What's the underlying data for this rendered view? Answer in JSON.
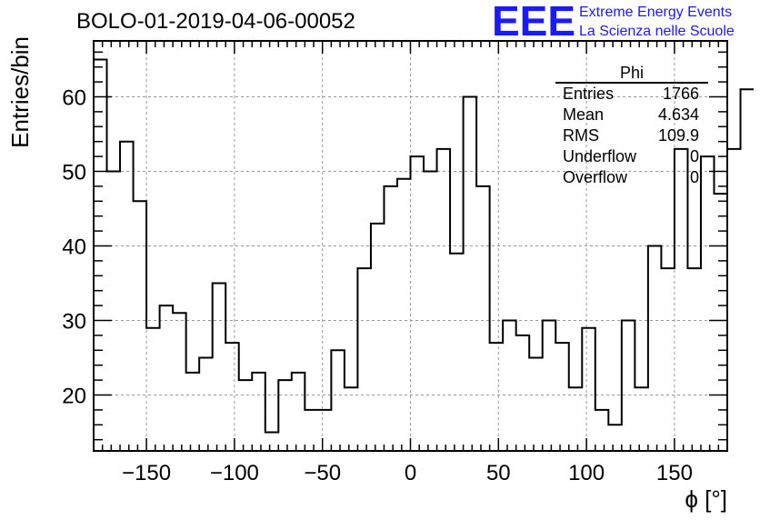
{
  "header": {
    "title": "BOLO-01-2019-04-06-00052"
  },
  "logo": {
    "mark": "EEE",
    "line1": "Extreme Energy Events",
    "line2": "La Scienza nelle Scuole",
    "color": "#1a1aff"
  },
  "stats": {
    "title": "Phi",
    "rows": [
      {
        "key": "Entries",
        "value": "1766"
      },
      {
        "key": "Mean",
        "value": "4.634"
      },
      {
        "key": "RMS",
        "value": "109.9"
      },
      {
        "key": "Underflow",
        "value": "0"
      },
      {
        "key": "Overflow",
        "value": "0"
      }
    ]
  },
  "chart_data": {
    "type": "bar",
    "style": "step-histogram",
    "title": "BOLO-01-2019-04-06-00052",
    "xlabel": "ϕ [°]",
    "ylabel": "Entries/bin",
    "xlim": [
      -180,
      180
    ],
    "ylim": [
      12.5,
      67.5
    ],
    "xticks": [
      -150,
      -100,
      -50,
      0,
      50,
      100,
      150
    ],
    "yticks": [
      20,
      30,
      40,
      50,
      60
    ],
    "grid": true,
    "bin_width": 7.5,
    "bin_edges_start": -180,
    "values": [
      65,
      50,
      54,
      46,
      29,
      32,
      31,
      23,
      25,
      35,
      27,
      22,
      23,
      15,
      22,
      23,
      18,
      18,
      26,
      21,
      37,
      43,
      48,
      49,
      52,
      50,
      53,
      39,
      60,
      48,
      27,
      30,
      28,
      25,
      30,
      27,
      21,
      29,
      18,
      16,
      30,
      21,
      40,
      37,
      53,
      37,
      52,
      47,
      53,
      61
    ],
    "line_color": "#000000"
  }
}
